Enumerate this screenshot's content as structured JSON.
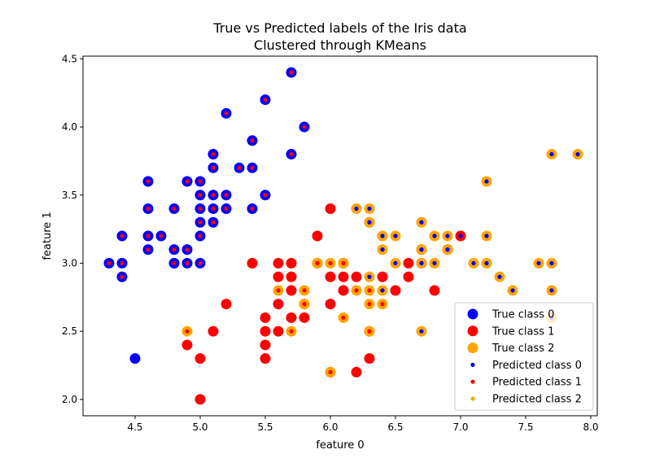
{
  "chart_data": {
    "type": "scatter",
    "title": "True vs Predicted labels of the Iris data\nClustered through KMeans",
    "title_lines": [
      "True vs Predicted labels of the Iris data",
      "Clustered through KMeans"
    ],
    "xlabel": "feature 0",
    "ylabel": "feature 1",
    "xlim": [
      4.1,
      8.05
    ],
    "ylim": [
      1.88,
      4.52
    ],
    "xticks": [
      4.5,
      5.0,
      5.5,
      6.0,
      6.5,
      7.0,
      7.5,
      8.0
    ],
    "yticks": [
      2.0,
      2.5,
      3.0,
      3.5,
      4.0,
      4.5
    ],
    "grid": false,
    "legend_position": "lower-right",
    "colors": {
      "class0": "#0000ff",
      "class1": "#ff0000",
      "class2": "#ffa500"
    },
    "legend": [
      {
        "label": "True class 0",
        "kind": "true",
        "color": "#0000ff"
      },
      {
        "label": "True class 1",
        "kind": "true",
        "color": "#ff0000"
      },
      {
        "label": "True class 2",
        "kind": "true",
        "color": "#ffa500"
      },
      {
        "label": "Predicted class 0",
        "kind": "pred",
        "color": "#0000ff"
      },
      {
        "label": "Predicted class 1",
        "kind": "pred",
        "color": "#ff0000"
      },
      {
        "label": "Predicted class 2",
        "kind": "pred",
        "color": "#ffa500"
      }
    ],
    "points": [
      [
        4.3,
        3.0,
        0,
        1
      ],
      [
        4.4,
        3.0,
        0,
        1
      ],
      [
        4.4,
        3.2,
        0,
        1
      ],
      [
        4.4,
        2.9,
        0,
        1
      ],
      [
        4.5,
        2.3,
        0,
        0
      ],
      [
        4.6,
        3.6,
        0,
        1
      ],
      [
        4.6,
        3.4,
        0,
        1
      ],
      [
        4.6,
        3.2,
        0,
        1
      ],
      [
        4.6,
        3.1,
        0,
        1
      ],
      [
        4.7,
        3.2,
        0,
        1
      ],
      [
        4.8,
        3.4,
        0,
        1
      ],
      [
        4.8,
        3.1,
        0,
        1
      ],
      [
        4.8,
        3.0,
        0,
        1
      ],
      [
        4.9,
        3.6,
        0,
        1
      ],
      [
        4.9,
        3.1,
        0,
        1
      ],
      [
        4.9,
        3.0,
        0,
        1
      ],
      [
        5.0,
        3.6,
        0,
        1
      ],
      [
        5.0,
        3.5,
        0,
        1
      ],
      [
        5.0,
        3.4,
        0,
        1
      ],
      [
        5.0,
        3.3,
        0,
        1
      ],
      [
        5.0,
        3.2,
        0,
        1
      ],
      [
        5.0,
        3.0,
        0,
        1
      ],
      [
        5.1,
        3.8,
        0,
        1
      ],
      [
        5.1,
        3.7,
        0,
        1
      ],
      [
        5.1,
        3.5,
        0,
        1
      ],
      [
        5.1,
        3.4,
        0,
        1
      ],
      [
        5.1,
        3.3,
        0,
        1
      ],
      [
        5.2,
        4.1,
        0,
        1
      ],
      [
        5.2,
        3.5,
        0,
        1
      ],
      [
        5.2,
        3.4,
        0,
        1
      ],
      [
        5.3,
        3.7,
        0,
        1
      ],
      [
        5.4,
        3.9,
        0,
        1
      ],
      [
        5.4,
        3.7,
        0,
        1
      ],
      [
        5.4,
        3.4,
        0,
        1
      ],
      [
        5.5,
        4.2,
        0,
        1
      ],
      [
        5.5,
        3.5,
        0,
        1
      ],
      [
        5.7,
        4.4,
        0,
        1
      ],
      [
        5.7,
        3.8,
        0,
        1
      ],
      [
        5.8,
        4.0,
        0,
        1
      ],
      [
        4.9,
        2.4,
        1,
        1
      ],
      [
        5.0,
        2.3,
        1,
        1
      ],
      [
        5.0,
        2.0,
        1,
        1
      ],
      [
        5.1,
        2.5,
        1,
        1
      ],
      [
        5.2,
        2.7,
        1,
        1
      ],
      [
        5.4,
        3.0,
        1,
        1
      ],
      [
        5.5,
        2.6,
        1,
        1
      ],
      [
        5.5,
        2.5,
        1,
        1
      ],
      [
        5.5,
        2.4,
        1,
        1
      ],
      [
        5.5,
        2.3,
        1,
        1
      ],
      [
        5.6,
        3.0,
        1,
        1
      ],
      [
        5.6,
        2.9,
        1,
        1
      ],
      [
        5.6,
        2.7,
        1,
        1
      ],
      [
        5.6,
        2.5,
        1,
        1
      ],
      [
        5.7,
        3.0,
        1,
        1
      ],
      [
        5.7,
        2.9,
        1,
        1
      ],
      [
        5.7,
        2.8,
        1,
        1
      ],
      [
        5.7,
        2.6,
        1,
        1
      ],
      [
        5.8,
        2.7,
        1,
        1
      ],
      [
        5.8,
        2.6,
        1,
        1
      ],
      [
        5.9,
        3.2,
        1,
        1
      ],
      [
        5.9,
        3.0,
        1,
        1
      ],
      [
        6.0,
        3.4,
        1,
        1
      ],
      [
        6.0,
        2.9,
        1,
        1
      ],
      [
        6.0,
        2.7,
        1,
        1
      ],
      [
        6.0,
        2.2,
        1,
        1
      ],
      [
        6.1,
        3.0,
        1,
        1
      ],
      [
        6.1,
        2.9,
        1,
        1
      ],
      [
        6.1,
        2.8,
        1,
        1
      ],
      [
        6.2,
        2.9,
        1,
        1
      ],
      [
        6.2,
        2.2,
        1,
        1
      ],
      [
        6.3,
        3.3,
        1,
        1
      ],
      [
        6.3,
        2.5,
        1,
        1
      ],
      [
        6.3,
        2.3,
        1,
        1
      ],
      [
        6.4,
        2.9,
        1,
        1
      ],
      [
        6.5,
        2.8,
        1,
        1
      ],
      [
        6.6,
        3.0,
        1,
        1
      ],
      [
        6.6,
        2.9,
        1,
        1
      ],
      [
        6.7,
        3.1,
        1,
        0
      ],
      [
        6.7,
        3.0,
        1,
        0
      ],
      [
        6.8,
        2.8,
        1,
        1
      ],
      [
        6.9,
        3.1,
        1,
        0
      ],
      [
        7.0,
        3.2,
        1,
        0
      ],
      [
        4.9,
        2.5,
        2,
        1
      ],
      [
        5.6,
        2.8,
        2,
        1
      ],
      [
        5.7,
        2.5,
        2,
        1
      ],
      [
        5.8,
        2.8,
        2,
        1
      ],
      [
        5.8,
        2.7,
        2,
        1
      ],
      [
        5.9,
        3.0,
        2,
        1
      ],
      [
        6.0,
        3.0,
        2,
        1
      ],
      [
        6.0,
        2.2,
        2,
        1
      ],
      [
        6.1,
        3.0,
        2,
        1
      ],
      [
        6.1,
        2.6,
        2,
        1
      ],
      [
        6.2,
        3.4,
        2,
        0
      ],
      [
        6.2,
        2.8,
        2,
        1
      ],
      [
        6.3,
        3.4,
        2,
        0
      ],
      [
        6.3,
        3.3,
        2,
        0
      ],
      [
        6.3,
        2.9,
        2,
        0
      ],
      [
        6.3,
        2.8,
        2,
        1
      ],
      [
        6.3,
        2.7,
        2,
        1
      ],
      [
        6.3,
        2.5,
        2,
        1
      ],
      [
        6.4,
        3.2,
        2,
        0
      ],
      [
        6.4,
        3.1,
        2,
        0
      ],
      [
        6.4,
        2.8,
        2,
        0
      ],
      [
        6.4,
        2.7,
        2,
        1
      ],
      [
        6.5,
        3.2,
        2,
        0
      ],
      [
        6.5,
        3.0,
        2,
        0
      ],
      [
        6.7,
        3.3,
        2,
        0
      ],
      [
        6.7,
        3.1,
        2,
        0
      ],
      [
        6.7,
        3.0,
        2,
        0
      ],
      [
        6.7,
        2.5,
        2,
        0
      ],
      [
        6.8,
        3.2,
        2,
        0
      ],
      [
        6.8,
        3.0,
        2,
        0
      ],
      [
        6.9,
        3.2,
        2,
        0
      ],
      [
        6.9,
        3.1,
        2,
        0
      ],
      [
        7.1,
        3.0,
        2,
        0
      ],
      [
        7.2,
        3.6,
        2,
        0
      ],
      [
        7.2,
        3.2,
        2,
        0
      ],
      [
        7.2,
        3.0,
        2,
        0
      ],
      [
        7.3,
        2.9,
        2,
        0
      ],
      [
        7.4,
        2.8,
        2,
        0
      ],
      [
        7.6,
        3.0,
        2,
        0
      ],
      [
        7.7,
        3.8,
        2,
        0
      ],
      [
        7.7,
        3.0,
        2,
        0
      ],
      [
        7.7,
        2.8,
        2,
        0
      ],
      [
        7.7,
        2.6,
        2,
        0
      ],
      [
        7.9,
        3.8,
        2,
        0
      ]
    ],
    "point_format": [
      "x",
      "y",
      "true_class",
      "predicted_class"
    ]
  }
}
